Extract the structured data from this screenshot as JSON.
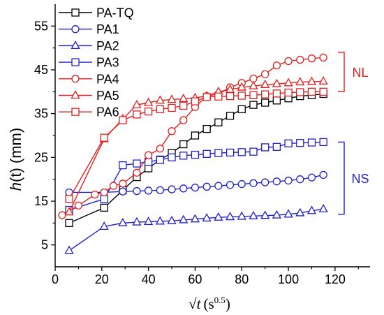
{
  "chart_data": {
    "type": "line",
    "xlabel_prefix": "√",
    "xlabel_var": "t",
    "xlabel_unit": "(s",
    "xlabel_exp": "0.5",
    "xlabel_close": ")",
    "ylabel_var": "h",
    "ylabel_rest": "(t) (mm)",
    "xlim": [
      0,
      135
    ],
    "ylim": [
      0,
      60
    ],
    "x_ticks": [
      0,
      20,
      40,
      60,
      80,
      100,
      120
    ],
    "y_ticks": [
      5,
      15,
      25,
      35,
      45,
      55
    ],
    "legend_position": "top-left",
    "grid": false,
    "brackets": [
      {
        "label": "NL",
        "y_range": [
          40,
          49
        ],
        "color": "#e02020"
      },
      {
        "label": "NS",
        "y_range": [
          12,
          28.5
        ],
        "color": "#2020d0"
      }
    ],
    "series": [
      {
        "name": "PA-TQ",
        "color": "#000000",
        "marker": "square",
        "x": [
          6,
          21,
          29,
          35,
          40,
          45,
          50,
          55,
          60,
          65,
          70,
          75,
          80,
          85,
          90,
          95,
          100,
          105,
          110,
          115
        ],
        "y": [
          10,
          13.5,
          17.5,
          20.5,
          22.5,
          24.5,
          26,
          28,
          30,
          31.5,
          33,
          34.5,
          36,
          37,
          37.5,
          38,
          38.5,
          39,
          39.2,
          39.5
        ]
      },
      {
        "name": "PA1",
        "color": "#2020d0",
        "marker": "circle",
        "x": [
          6,
          21,
          29,
          35,
          40,
          45,
          50,
          55,
          60,
          65,
          70,
          75,
          80,
          85,
          90,
          95,
          100,
          105,
          110,
          115
        ],
        "y": [
          17,
          17,
          17.2,
          17.3,
          17.4,
          17.5,
          17.7,
          17.9,
          18.1,
          18.3,
          18.5,
          18.7,
          18.9,
          19.1,
          19.3,
          19.5,
          19.7,
          20,
          20.4,
          21
        ]
      },
      {
        "name": "PA2",
        "color": "#2020d0",
        "marker": "triangle",
        "x": [
          6,
          21,
          29,
          35,
          40,
          45,
          50,
          55,
          60,
          65,
          70,
          75,
          80,
          85,
          90,
          95,
          100,
          105,
          110,
          115
        ],
        "y": [
          3.7,
          9.2,
          10,
          10.2,
          10.3,
          10.4,
          10.5,
          10.7,
          10.9,
          11.1,
          11.3,
          11.4,
          11.5,
          11.6,
          11.7,
          11.8,
          12,
          12.3,
          12.8,
          13.2
        ]
      },
      {
        "name": "PA3",
        "color": "#2020d0",
        "marker": "square",
        "x": [
          6,
          21,
          29,
          35,
          40,
          45,
          50,
          55,
          60,
          65,
          70,
          75,
          80,
          85,
          90,
          95,
          100,
          105,
          110,
          115
        ],
        "y": [
          13,
          15.5,
          23.2,
          23.6,
          24,
          24.4,
          25,
          25.4,
          25.6,
          25.8,
          26,
          26.1,
          26.2,
          26.3,
          27.3,
          27.4,
          28.2,
          28.3,
          28.4,
          28.5
        ]
      },
      {
        "name": "PA4",
        "color": "#e02020",
        "marker": "circle",
        "x": [
          3,
          10,
          17,
          21,
          25,
          29,
          35,
          40,
          45,
          50,
          55,
          60,
          65,
          70,
          75,
          80,
          85,
          90,
          95,
          100,
          105,
          110,
          115
        ],
        "y": [
          11.8,
          14,
          16.5,
          17,
          18.5,
          19,
          21.5,
          25.5,
          27,
          31,
          33.5,
          36.5,
          39,
          39.5,
          41,
          42,
          43,
          44,
          46,
          47,
          47.3,
          47.6,
          47.8
        ]
      },
      {
        "name": "PA5",
        "color": "#e02020",
        "marker": "triangle",
        "x": [
          6,
          21,
          29,
          35,
          40,
          45,
          50,
          55,
          60,
          65,
          70,
          75,
          80,
          85,
          90,
          95,
          100,
          105,
          110,
          115
        ],
        "y": [
          12.5,
          29.2,
          33.8,
          37,
          37.5,
          38,
          38.2,
          38.4,
          38.6,
          39,
          40,
          40.5,
          41,
          41.3,
          41.6,
          41.8,
          42,
          42.2,
          42.3,
          42.4
        ]
      },
      {
        "name": "PA6",
        "color": "#e02020",
        "marker": "square",
        "x": [
          6,
          21,
          29,
          35,
          40,
          45,
          50,
          55,
          60,
          65,
          70,
          75,
          80,
          85,
          90,
          95,
          100,
          105,
          110,
          115
        ],
        "y": [
          15.5,
          29.5,
          33.5,
          34.8,
          35.5,
          36,
          36.3,
          36.8,
          37.8,
          38.8,
          38.9,
          39,
          39.1,
          39.2,
          39.4,
          39.6,
          39.8,
          39.9,
          40,
          40
        ]
      }
    ]
  }
}
